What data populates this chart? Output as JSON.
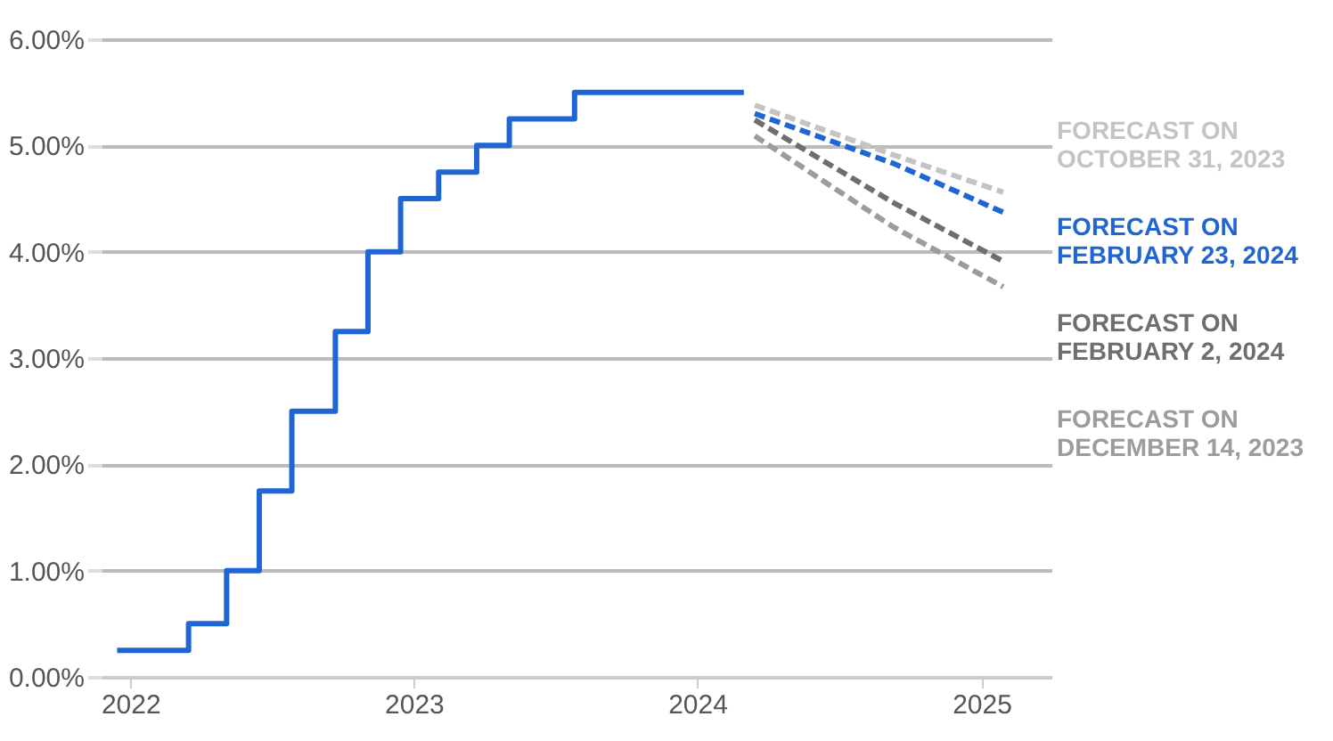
{
  "chart_data": {
    "type": "line",
    "series": [
      {
        "type": "step",
        "color": "#1f66d4",
        "line_style": "solid",
        "x": [
          "2021-12-15",
          "2022-03-17",
          "2022-05-05",
          "2022-06-16",
          "2022-07-28",
          "2022-09-22",
          "2022-11-03",
          "2022-12-15",
          "2023-02-02",
          "2023-03-23",
          "2023-05-04",
          "2023-07-27",
          "2024-03-01"
        ],
        "values": [
          0.25,
          0.5,
          1.0,
          1.75,
          2.5,
          3.25,
          4.0,
          4.5,
          4.75,
          5.0,
          5.25,
          5.5,
          5.5
        ]
      },
      {
        "name": "FORECAST ON OCTOBER 31, 2023",
        "color": "#c4c4c4",
        "line_style": "dashed",
        "x": [
          "2024-03-15",
          "2024-09-10",
          "2025-01-29"
        ],
        "values": [
          5.38,
          4.91,
          4.56
        ]
      },
      {
        "name": "FORECAST ON FEBRUARY 23, 2024",
        "color": "#1f66d4",
        "line_style": "dashed",
        "x": [
          "2024-03-15",
          "2024-09-10",
          "2025-01-29"
        ],
        "values": [
          5.3,
          4.83,
          4.37
        ]
      },
      {
        "name": "FORECAST ON FEBRUARY 2, 2024",
        "color": "#6e6e6e",
        "line_style": "dashed",
        "x": [
          "2024-03-15",
          "2024-09-10",
          "2025-01-29"
        ],
        "values": [
          5.24,
          4.46,
          3.91
        ]
      },
      {
        "name": "FORECAST ON DECEMBER 14, 2023",
        "color": "#9c9c9c",
        "line_style": "dashed",
        "x": [
          "2024-03-15",
          "2024-09-10",
          "2025-01-29"
        ],
        "values": [
          5.09,
          4.23,
          3.67
        ]
      }
    ],
    "xlim": [
      "2021-11-25",
      "2025-04-01"
    ],
    "xticks": [
      {
        "value": "2022-01-01",
        "label": "2022"
      },
      {
        "value": "2023-01-01",
        "label": "2023"
      },
      {
        "value": "2024-01-01",
        "label": "2024"
      },
      {
        "value": "2025-01-01",
        "label": "2025"
      }
    ],
    "ylim": [
      0,
      6
    ],
    "yticks": [
      {
        "value": 0,
        "label": "0.00%"
      },
      {
        "value": 1,
        "label": "1.00%"
      },
      {
        "value": 2,
        "label": "2.00%"
      },
      {
        "value": 3,
        "label": "3.00%"
      },
      {
        "value": 4,
        "label": "4.00%"
      },
      {
        "value": 5,
        "label": "5.00%"
      },
      {
        "value": 6,
        "label": "6.00%"
      }
    ],
    "grid": "y"
  }
}
